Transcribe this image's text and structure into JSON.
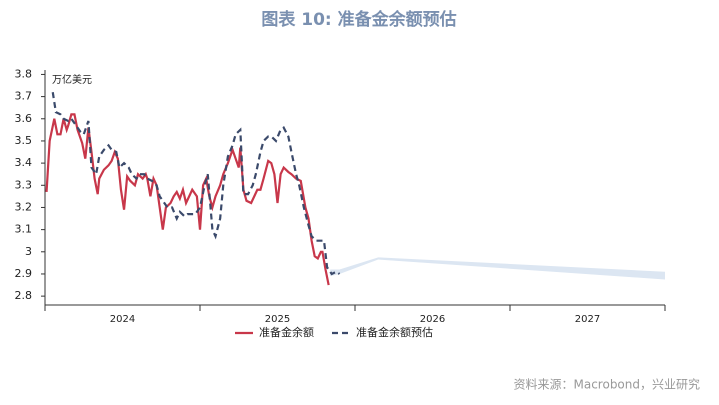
{
  "chart_data": {
    "type": "line",
    "title": "图表 10: 准备金余额预估",
    "y_label": "万亿美元",
    "source": "资料来源：Macrobond，兴业研究",
    "categories": [
      "2024",
      "2025",
      "2026",
      "2027"
    ],
    "xlim": [
      2024,
      2028
    ],
    "xticks": [
      2024,
      2025,
      2026,
      2027,
      2028
    ],
    "ylim": [
      2.76,
      3.82
    ],
    "yticks": [
      2.8,
      2.9,
      3.0,
      3.1,
      3.2,
      3.3,
      3.4,
      3.5,
      3.6,
      3.7,
      3.8
    ],
    "legend": "bottom",
    "series": [
      {
        "name": "准备金余额",
        "color": "#c8374a",
        "dash": false,
        "x": [
          2024.01,
          2024.03,
          2024.06,
          2024.08,
          2024.1,
          2024.12,
          2024.14,
          2024.15,
          2024.17,
          2024.19,
          2024.21,
          2024.24,
          2024.26,
          2024.28,
          2024.3,
          2024.32,
          2024.34,
          2024.35,
          2024.38,
          2024.41,
          2024.43,
          2024.45,
          2024.47,
          2024.49,
          2024.51,
          2024.53,
          2024.55,
          2024.58,
          2024.6,
          2024.63,
          2024.65,
          2024.66,
          2024.68,
          2024.7,
          2024.72,
          2024.74,
          2024.76,
          2024.78,
          2024.81,
          2024.83,
          2024.85,
          2024.87,
          2024.89,
          2024.91,
          2024.93,
          2024.95,
          2024.98,
          2025.0,
          2025.02,
          2025.04,
          2025.06,
          2025.08,
          2025.1,
          2025.13,
          2025.15,
          2025.18,
          2025.21,
          2025.23,
          2025.25,
          2025.26,
          2025.28,
          2025.3,
          2025.33,
          2025.35,
          2025.37,
          2025.39,
          2025.41,
          2025.44,
          2025.46,
          2025.48,
          2025.5,
          2025.52,
          2025.54,
          2025.57,
          2025.59,
          2025.62,
          2025.65,
          2025.66,
          2025.68,
          2025.7,
          2025.72,
          2025.74,
          2025.76,
          2025.78,
          2025.79,
          2025.81,
          2025.83
        ],
        "values": [
          3.27,
          3.5,
          3.6,
          3.53,
          3.53,
          3.6,
          3.55,
          3.57,
          3.62,
          3.62,
          3.55,
          3.49,
          3.42,
          3.56,
          3.45,
          3.33,
          3.26,
          3.33,
          3.37,
          3.39,
          3.41,
          3.45,
          3.42,
          3.28,
          3.19,
          3.34,
          3.32,
          3.3,
          3.35,
          3.33,
          3.35,
          3.33,
          3.25,
          3.33,
          3.3,
          3.2,
          3.1,
          3.2,
          3.22,
          3.25,
          3.27,
          3.24,
          3.28,
          3.22,
          3.25,
          3.28,
          3.25,
          3.1,
          3.3,
          3.33,
          3.25,
          3.2,
          3.25,
          3.3,
          3.35,
          3.4,
          3.46,
          3.42,
          3.38,
          3.47,
          3.28,
          3.23,
          3.22,
          3.25,
          3.28,
          3.28,
          3.33,
          3.41,
          3.4,
          3.35,
          3.22,
          3.35,
          3.38,
          3.36,
          3.35,
          3.33,
          3.32,
          3.28,
          3.2,
          3.15,
          3.05,
          2.98,
          2.97,
          3.0,
          3.0,
          2.92,
          2.85
        ]
      },
      {
        "name": "准备金余额预估",
        "color": "#3b4a6b",
        "dash": true,
        "x": [
          2024.05,
          2024.07,
          2024.1,
          2024.12,
          2024.15,
          2024.17,
          2024.2,
          2024.23,
          2024.25,
          2024.28,
          2024.3,
          2024.33,
          2024.35,
          2024.38,
          2024.41,
          2024.43,
          2024.46,
          2024.48,
          2024.51,
          2024.54,
          2024.56,
          2024.59,
          2024.61,
          2024.64,
          2024.66,
          2024.69,
          2024.72,
          2024.74,
          2024.77,
          2024.79,
          2024.82,
          2024.85,
          2024.87,
          2024.9,
          2024.92,
          2024.95,
          2024.97,
          2025.0,
          2025.03,
          2025.05,
          2025.08,
          2025.1,
          2025.13,
          2025.15,
          2025.18,
          2025.21,
          2025.23,
          2025.26,
          2025.28,
          2025.31,
          2025.34,
          2025.36,
          2025.39,
          2025.41,
          2025.44,
          2025.46,
          2025.49,
          2025.52,
          2025.54,
          2025.57,
          2025.59,
          2025.62,
          2025.64,
          2025.67,
          2025.7,
          2025.72,
          2025.75,
          2025.77,
          2025.8,
          2025.82,
          2025.85,
          2025.88,
          2025.9
        ],
        "values": [
          3.72,
          3.63,
          3.62,
          3.6,
          3.59,
          3.6,
          3.57,
          3.54,
          3.53,
          3.59,
          3.38,
          3.35,
          3.43,
          3.46,
          3.48,
          3.46,
          3.45,
          3.38,
          3.4,
          3.38,
          3.35,
          3.33,
          3.35,
          3.35,
          3.33,
          3.32,
          3.3,
          3.25,
          3.22,
          3.2,
          3.2,
          3.15,
          3.18,
          3.16,
          3.17,
          3.17,
          3.17,
          3.2,
          3.3,
          3.35,
          3.1,
          3.07,
          3.15,
          3.3,
          3.43,
          3.48,
          3.53,
          3.55,
          3.26,
          3.26,
          3.3,
          3.35,
          3.45,
          3.5,
          3.52,
          3.52,
          3.5,
          3.55,
          3.56,
          3.52,
          3.45,
          3.35,
          3.3,
          3.2,
          3.12,
          3.07,
          3.05,
          3.05,
          3.05,
          2.93,
          2.9,
          2.91,
          2.9
        ]
      }
    ],
    "band": {
      "color": "#dce6f2",
      "x": [
        2025.84,
        2025.9,
        2026.15,
        2028.0
      ],
      "lower": [
        2.89,
        2.9,
        2.965,
        2.875
      ],
      "upper": [
        2.92,
        2.92,
        2.975,
        2.91
      ]
    }
  }
}
